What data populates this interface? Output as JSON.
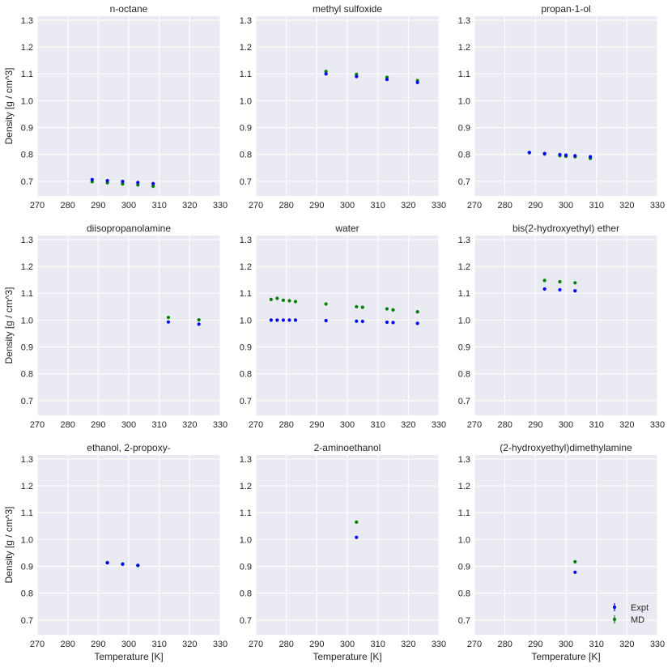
{
  "colors": {
    "panel_bg": "#EAEAF2",
    "grid": "#FFFFFF",
    "expt": "#0000FF",
    "md": "#008000",
    "text": "#262626"
  },
  "axes": {
    "xlabel": "Temperature [K]",
    "ylabel": "Density [g / cm^3]",
    "xlim": [
      270,
      330
    ],
    "ylim": [
      0.645,
      1.315
    ],
    "xticks": [
      270,
      280,
      290,
      300,
      310,
      320,
      330
    ],
    "xtick_labels": [
      "270",
      "280",
      "290",
      "300",
      "310",
      "320",
      "330"
    ],
    "yticks": [
      0.7,
      0.8,
      0.9,
      1.0,
      1.1,
      1.2,
      1.3
    ],
    "ytick_labels": [
      "0.7",
      "0.8",
      "0.9",
      "1.0",
      "1.1",
      "1.2",
      "1.3"
    ]
  },
  "legend": {
    "location": "lower-right",
    "entries": [
      "Expt",
      "MD"
    ]
  },
  "chart_data": [
    {
      "type": "scatter",
      "title": "n-octane",
      "series": [
        {
          "name": "Expt",
          "x": [
            288,
            293,
            298,
            303,
            308
          ],
          "y": [
            0.706,
            0.702,
            0.699,
            0.695,
            0.691
          ]
        },
        {
          "name": "MD",
          "x": [
            288,
            293,
            298,
            303,
            308
          ],
          "y": [
            0.698,
            0.694,
            0.69,
            0.686,
            0.681
          ]
        }
      ]
    },
    {
      "type": "scatter",
      "title": "methyl sulfoxide",
      "series": [
        {
          "name": "Expt",
          "x": [
            293,
            303,
            313,
            323
          ],
          "y": [
            1.1,
            1.09,
            1.079,
            1.068
          ]
        },
        {
          "name": "MD",
          "x": [
            293,
            303,
            313,
            323
          ],
          "y": [
            1.109,
            1.098,
            1.087,
            1.075
          ]
        }
      ]
    },
    {
      "type": "scatter",
      "title": "propan-1-ol",
      "series": [
        {
          "name": "Expt",
          "x": [
            288,
            293,
            298,
            300,
            303,
            308
          ],
          "y": [
            0.807,
            0.803,
            0.799,
            0.797,
            0.795,
            0.791
          ]
        },
        {
          "name": "MD",
          "x": [
            288,
            293,
            298,
            300,
            303,
            308
          ],
          "y": [
            0.806,
            0.801,
            0.795,
            0.793,
            0.791,
            0.785
          ]
        }
      ]
    },
    {
      "type": "scatter",
      "title": "diisopropanolamine",
      "series": [
        {
          "name": "Expt",
          "x": [
            313,
            323
          ],
          "y": [
            0.993,
            0.985
          ]
        },
        {
          "name": "MD",
          "x": [
            313,
            323
          ],
          "y": [
            1.01,
            1.001
          ]
        }
      ]
    },
    {
      "type": "scatter",
      "title": "water",
      "series": [
        {
          "name": "Expt",
          "x": [
            275,
            277,
            279,
            281,
            283,
            293,
            303,
            305,
            313,
            315,
            323
          ],
          "y": [
            1.0,
            1.0,
            1.0,
            1.0,
            1.0,
            0.998,
            0.996,
            0.995,
            0.992,
            0.991,
            0.988
          ]
        },
        {
          "name": "MD",
          "x": [
            275,
            277,
            279,
            281,
            283,
            293,
            303,
            305,
            313,
            315,
            323
          ],
          "y": [
            1.077,
            1.081,
            1.074,
            1.072,
            1.069,
            1.06,
            1.05,
            1.048,
            1.042,
            1.038,
            1.031
          ]
        }
      ]
    },
    {
      "type": "scatter",
      "title": "bis(2-hydroxyethyl) ether",
      "series": [
        {
          "name": "Expt",
          "x": [
            293,
            298,
            303
          ],
          "y": [
            1.116,
            1.113,
            1.109
          ]
        },
        {
          "name": "MD",
          "x": [
            293,
            298,
            303
          ],
          "y": [
            1.148,
            1.143,
            1.139
          ]
        }
      ]
    },
    {
      "type": "scatter",
      "title": "ethanol, 2-propoxy-",
      "series": [
        {
          "name": "Expt",
          "x": [
            293,
            298,
            303
          ],
          "y": [
            0.913,
            0.908,
            0.904
          ]
        },
        {
          "name": "MD",
          "x": [
            293,
            298,
            303
          ],
          "y": [
            0.914,
            0.909,
            0.903
          ]
        }
      ]
    },
    {
      "type": "scatter",
      "title": "2-aminoethanol",
      "series": [
        {
          "name": "Expt",
          "x": [
            303
          ],
          "y": [
            1.008
          ]
        },
        {
          "name": "MD",
          "x": [
            303
          ],
          "y": [
            1.065
          ]
        }
      ]
    },
    {
      "type": "scatter",
      "title": "(2-hydroxyethyl)dimethylamine",
      "series": [
        {
          "name": "Expt",
          "x": [
            303
          ],
          "y": [
            0.878
          ]
        },
        {
          "name": "MD",
          "x": [
            303
          ],
          "y": [
            0.917
          ]
        }
      ]
    }
  ]
}
